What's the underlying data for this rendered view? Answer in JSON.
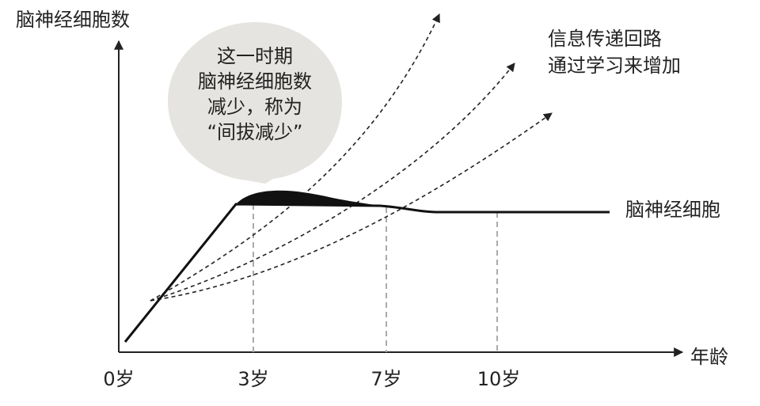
{
  "axes": {
    "y_label": "脑神经细胞数",
    "x_label": "年龄",
    "x_ticks": [
      "0岁",
      "3岁",
      "7岁",
      "10岁"
    ]
  },
  "bubble": {
    "lines": [
      "这一时期",
      "脑神经细胞数",
      "减少，称为",
      "“间拔减少”"
    ]
  },
  "annotations": {
    "circuits": [
      "信息传递回路",
      "通过学习来增加"
    ],
    "neurons": "脑神经细胞"
  }
}
